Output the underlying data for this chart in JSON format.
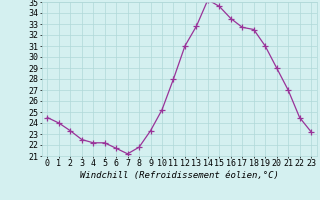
{
  "x": [
    0,
    1,
    2,
    3,
    4,
    5,
    6,
    7,
    8,
    9,
    10,
    11,
    12,
    13,
    14,
    15,
    16,
    17,
    18,
    19,
    20,
    21,
    22,
    23
  ],
  "y": [
    24.5,
    24.0,
    23.3,
    22.5,
    22.2,
    22.2,
    21.7,
    21.2,
    21.8,
    23.3,
    25.2,
    28.0,
    31.0,
    32.8,
    35.2,
    34.6,
    33.5,
    32.7,
    32.5,
    31.0,
    29.0,
    27.0,
    24.5,
    23.2
  ],
  "line_color": "#993399",
  "marker": "+",
  "marker_size": 4,
  "bg_color": "#d4f0f0",
  "grid_color": "#b0d8d8",
  "xlabel": "Windchill (Refroidissement éolien,°C)",
  "xlabel_fontsize": 6.5,
  "tick_fontsize": 6,
  "ylim": [
    21,
    35
  ],
  "xlim": [
    -0.5,
    23.5
  ],
  "yticks": [
    21,
    22,
    23,
    24,
    25,
    26,
    27,
    28,
    29,
    30,
    31,
    32,
    33,
    34,
    35
  ],
  "xticks": [
    0,
    1,
    2,
    3,
    4,
    5,
    6,
    7,
    8,
    9,
    10,
    11,
    12,
    13,
    14,
    15,
    16,
    17,
    18,
    19,
    20,
    21,
    22,
    23
  ]
}
